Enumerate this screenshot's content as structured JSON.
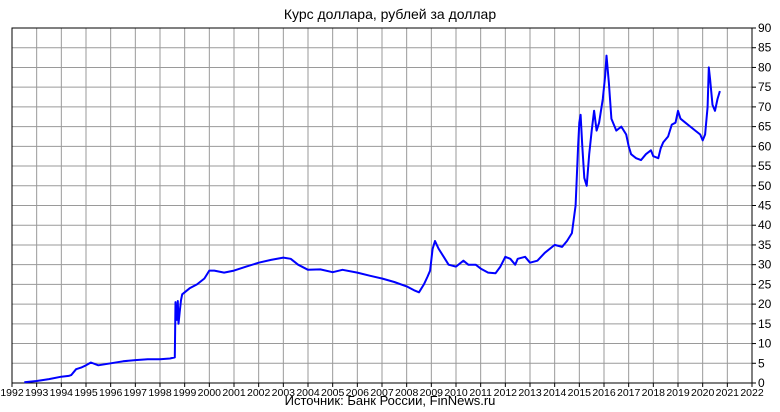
{
  "chart_data": {
    "type": "line",
    "title": "Курс доллара,  рублей  за доллар",
    "source": "Источник: Банк России, FinNews.ru",
    "xlabel": "",
    "ylabel": "",
    "xlim": [
      1992,
      2022
    ],
    "ylim": [
      0,
      90
    ],
    "x_ticks": [
      "1992",
      "1993",
      "1994",
      "1995",
      "1996",
      "1997",
      "1998",
      "1999",
      "2000",
      "2001",
      "2002",
      "2003",
      "2004",
      "2005",
      "2006",
      "2007",
      "2008",
      "2009",
      "2010",
      "2011",
      "2012",
      "2013",
      "2014",
      "2015",
      "2016",
      "2017",
      "2018",
      "2019",
      "2020",
      "2021",
      "2022"
    ],
    "y_ticks": [
      "0",
      "5",
      "10",
      "15",
      "20",
      "25",
      "30",
      "35",
      "40",
      "45",
      "50",
      "55",
      "60",
      "65",
      "70",
      "75",
      "80",
      "85",
      "90"
    ],
    "y_axis_side": "right",
    "grid": true,
    "line_color": "#0000ff",
    "series": [
      {
        "x": [
          1992.5,
          1993.0,
          1993.5,
          1994.0,
          1994.3,
          1994.4,
          1994.6,
          1994.8,
          1995.0,
          1995.2,
          1995.5,
          1996.0,
          1996.5,
          1997.0,
          1997.5,
          1998.0,
          1998.4,
          1998.6,
          1998.63,
          1998.68,
          1998.7,
          1998.72,
          1998.75,
          1998.8,
          1998.85,
          1998.9,
          1999.0,
          1999.2,
          1999.5,
          1999.8,
          2000.0,
          2000.2,
          2000.6,
          2001.0,
          2001.5,
          2002.0,
          2002.5,
          2003.0,
          2003.3,
          2003.6,
          2004.0,
          2004.5,
          2005.0,
          2005.4,
          2006.0,
          2006.5,
          2007.0,
          2007.5,
          2008.0,
          2008.3,
          2008.5,
          2008.7,
          2008.85,
          2008.95,
          2009.05,
          2009.15,
          2009.3,
          2009.5,
          2009.7,
          2010.0,
          2010.3,
          2010.5,
          2010.8,
          2011.0,
          2011.3,
          2011.6,
          2011.8,
          2012.0,
          2012.2,
          2012.4,
          2012.5,
          2012.8,
          2013.0,
          2013.3,
          2013.6,
          2014.0,
          2014.3,
          2014.5,
          2014.7,
          2014.85,
          2014.95,
          2015.0,
          2015.05,
          2015.12,
          2015.2,
          2015.3,
          2015.4,
          2015.5,
          2015.6,
          2015.7,
          2015.8,
          2015.95,
          2016.05,
          2016.1,
          2016.2,
          2016.3,
          2016.5,
          2016.7,
          2016.9,
          2017.0,
          2017.1,
          2017.3,
          2017.5,
          2017.7,
          2017.9,
          2018.0,
          2018.2,
          2018.3,
          2018.4,
          2018.6,
          2018.75,
          2018.9,
          2019.0,
          2019.1,
          2019.3,
          2019.5,
          2019.7,
          2019.9,
          2020.0,
          2020.1,
          2020.2,
          2020.25,
          2020.3,
          2020.4,
          2020.5,
          2020.6,
          2020.7
        ],
        "y": [
          0.2,
          0.5,
          1.0,
          1.6,
          1.8,
          2.0,
          3.5,
          3.9,
          4.5,
          5.2,
          4.5,
          5.0,
          5.5,
          5.8,
          6.0,
          6.0,
          6.2,
          6.5,
          20.5,
          16.0,
          18.0,
          20.8,
          15.0,
          18.0,
          21.0,
          22.5,
          23.0,
          24.0,
          25.0,
          26.5,
          28.5,
          28.5,
          28.0,
          28.5,
          29.5,
          30.5,
          31.2,
          31.8,
          31.5,
          30.0,
          28.7,
          28.8,
          28.1,
          28.7,
          28.0,
          27.2,
          26.5,
          25.6,
          24.5,
          23.5,
          23.0,
          25.0,
          27.0,
          28.5,
          34.0,
          36.0,
          34.0,
          32.0,
          30.0,
          29.5,
          31.0,
          30.0,
          30.0,
          29.0,
          28.0,
          27.8,
          29.5,
          32.0,
          31.5,
          30.0,
          31.5,
          32.0,
          30.5,
          31.0,
          33.0,
          35.0,
          34.5,
          36.0,
          38.0,
          45.0,
          60.0,
          66.0,
          68.0,
          60.0,
          52.0,
          50.0,
          58.0,
          64.0,
          69.0,
          64.0,
          66.0,
          72.0,
          78.0,
          83.0,
          76.0,
          67.0,
          64.0,
          65.0,
          63.0,
          60.0,
          58.0,
          57.0,
          56.5,
          58.0,
          59.0,
          57.5,
          57.0,
          59.5,
          61.0,
          62.5,
          65.5,
          66.0,
          69.0,
          67.0,
          66.0,
          65.0,
          64.0,
          63.0,
          61.5,
          63.0,
          70.0,
          80.0,
          77.0,
          70.5,
          69.0,
          72.0,
          74.0
        ]
      }
    ]
  }
}
